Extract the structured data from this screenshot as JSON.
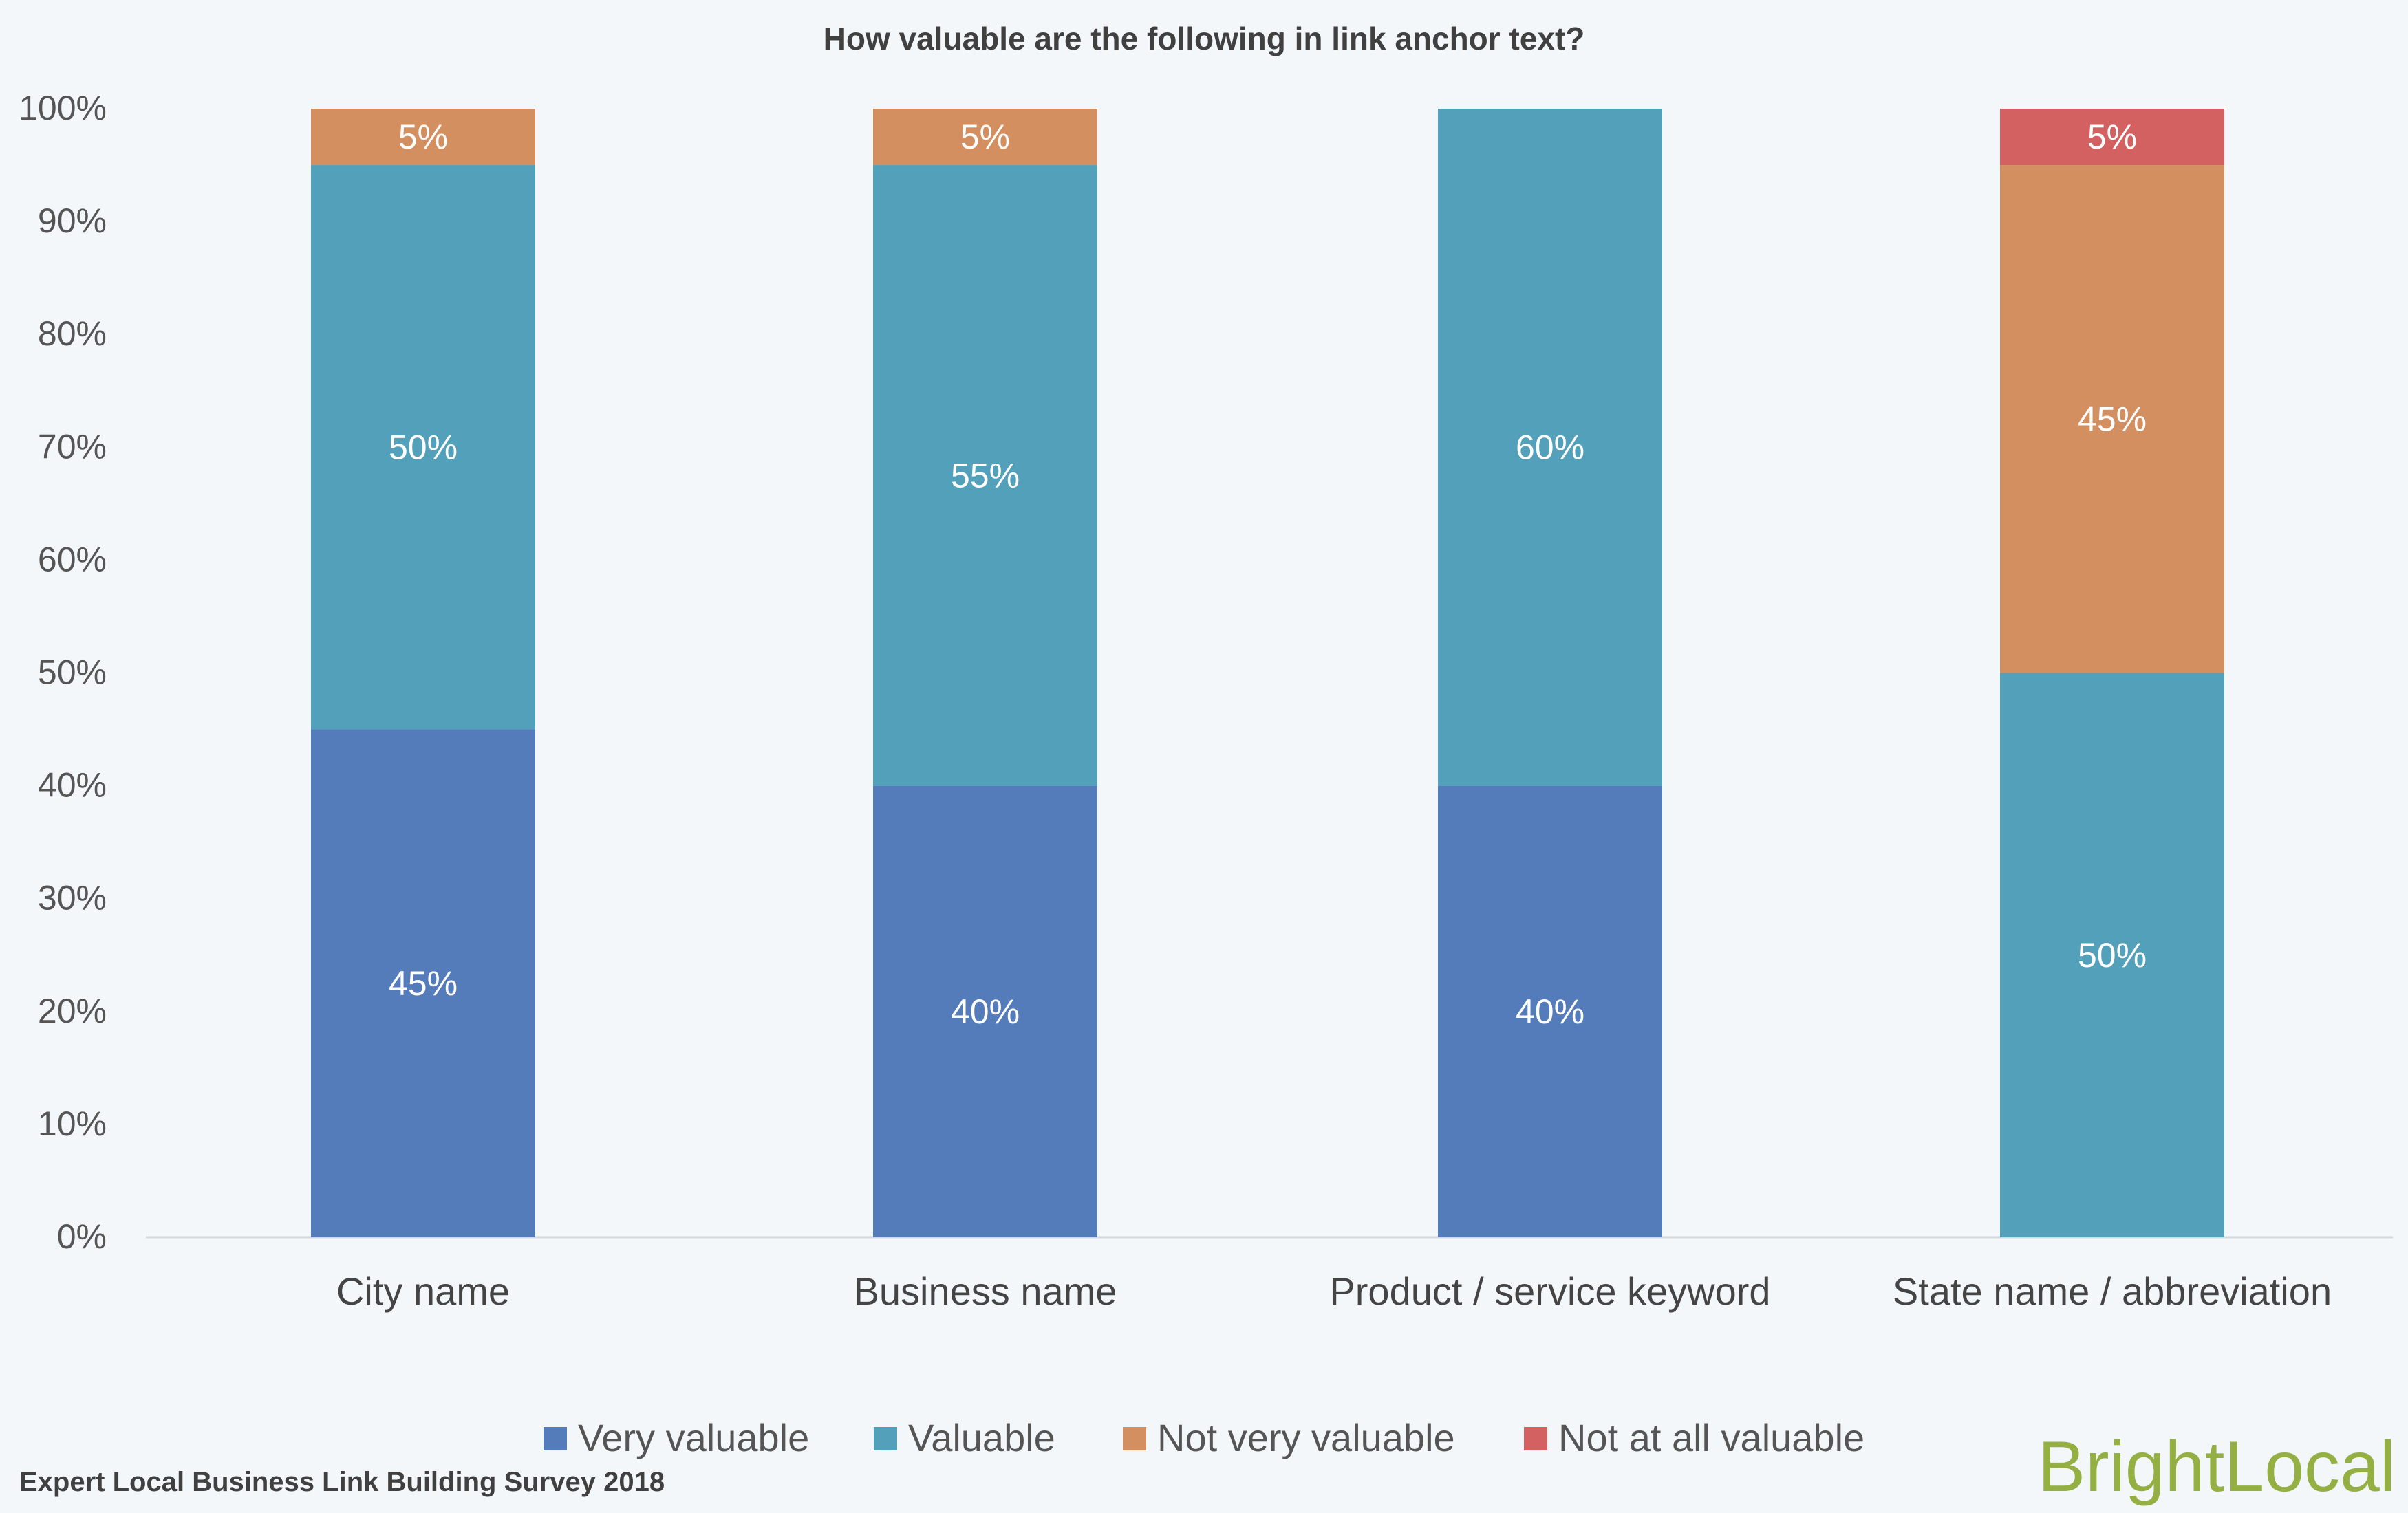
{
  "chart_data": {
    "type": "bar",
    "stacked": true,
    "title": "How valuable are the following in link anchor text?",
    "categories": [
      "City name",
      "Business name",
      "Product / service keyword",
      "State name / abbreviation"
    ],
    "series": [
      {
        "name": "Very valuable",
        "color": "#547bba",
        "values": [
          45,
          40,
          40,
          0
        ],
        "labels": [
          "45%",
          "40%",
          "40%",
          ""
        ]
      },
      {
        "name": "Valuable",
        "color": "#53a0bb",
        "values": [
          50,
          55,
          60,
          50
        ],
        "labels": [
          "50%",
          "55%",
          "60%",
          "50%"
        ]
      },
      {
        "name": "Not very valuable",
        "color": "#d38f5f",
        "values": [
          5,
          5,
          0,
          45
        ],
        "labels": [
          "5%",
          "5%",
          "",
          "45%"
        ]
      },
      {
        "name": "Not at all valuable",
        "color": "#d46162",
        "values": [
          0,
          0,
          0,
          5
        ],
        "labels": [
          "",
          "",
          "",
          "5%"
        ]
      }
    ],
    "yticks": [
      "0%",
      "10%",
      "20%",
      "30%",
      "40%",
      "50%",
      "60%",
      "70%",
      "80%",
      "90%",
      "100%"
    ],
    "ylim": [
      0,
      100
    ],
    "grid": false,
    "legend_position": "bottom"
  },
  "footer": {
    "source": "Expert Local Business Link Building Survey 2018",
    "brand_part1": "Bright",
    "brand_part2": "Local"
  }
}
